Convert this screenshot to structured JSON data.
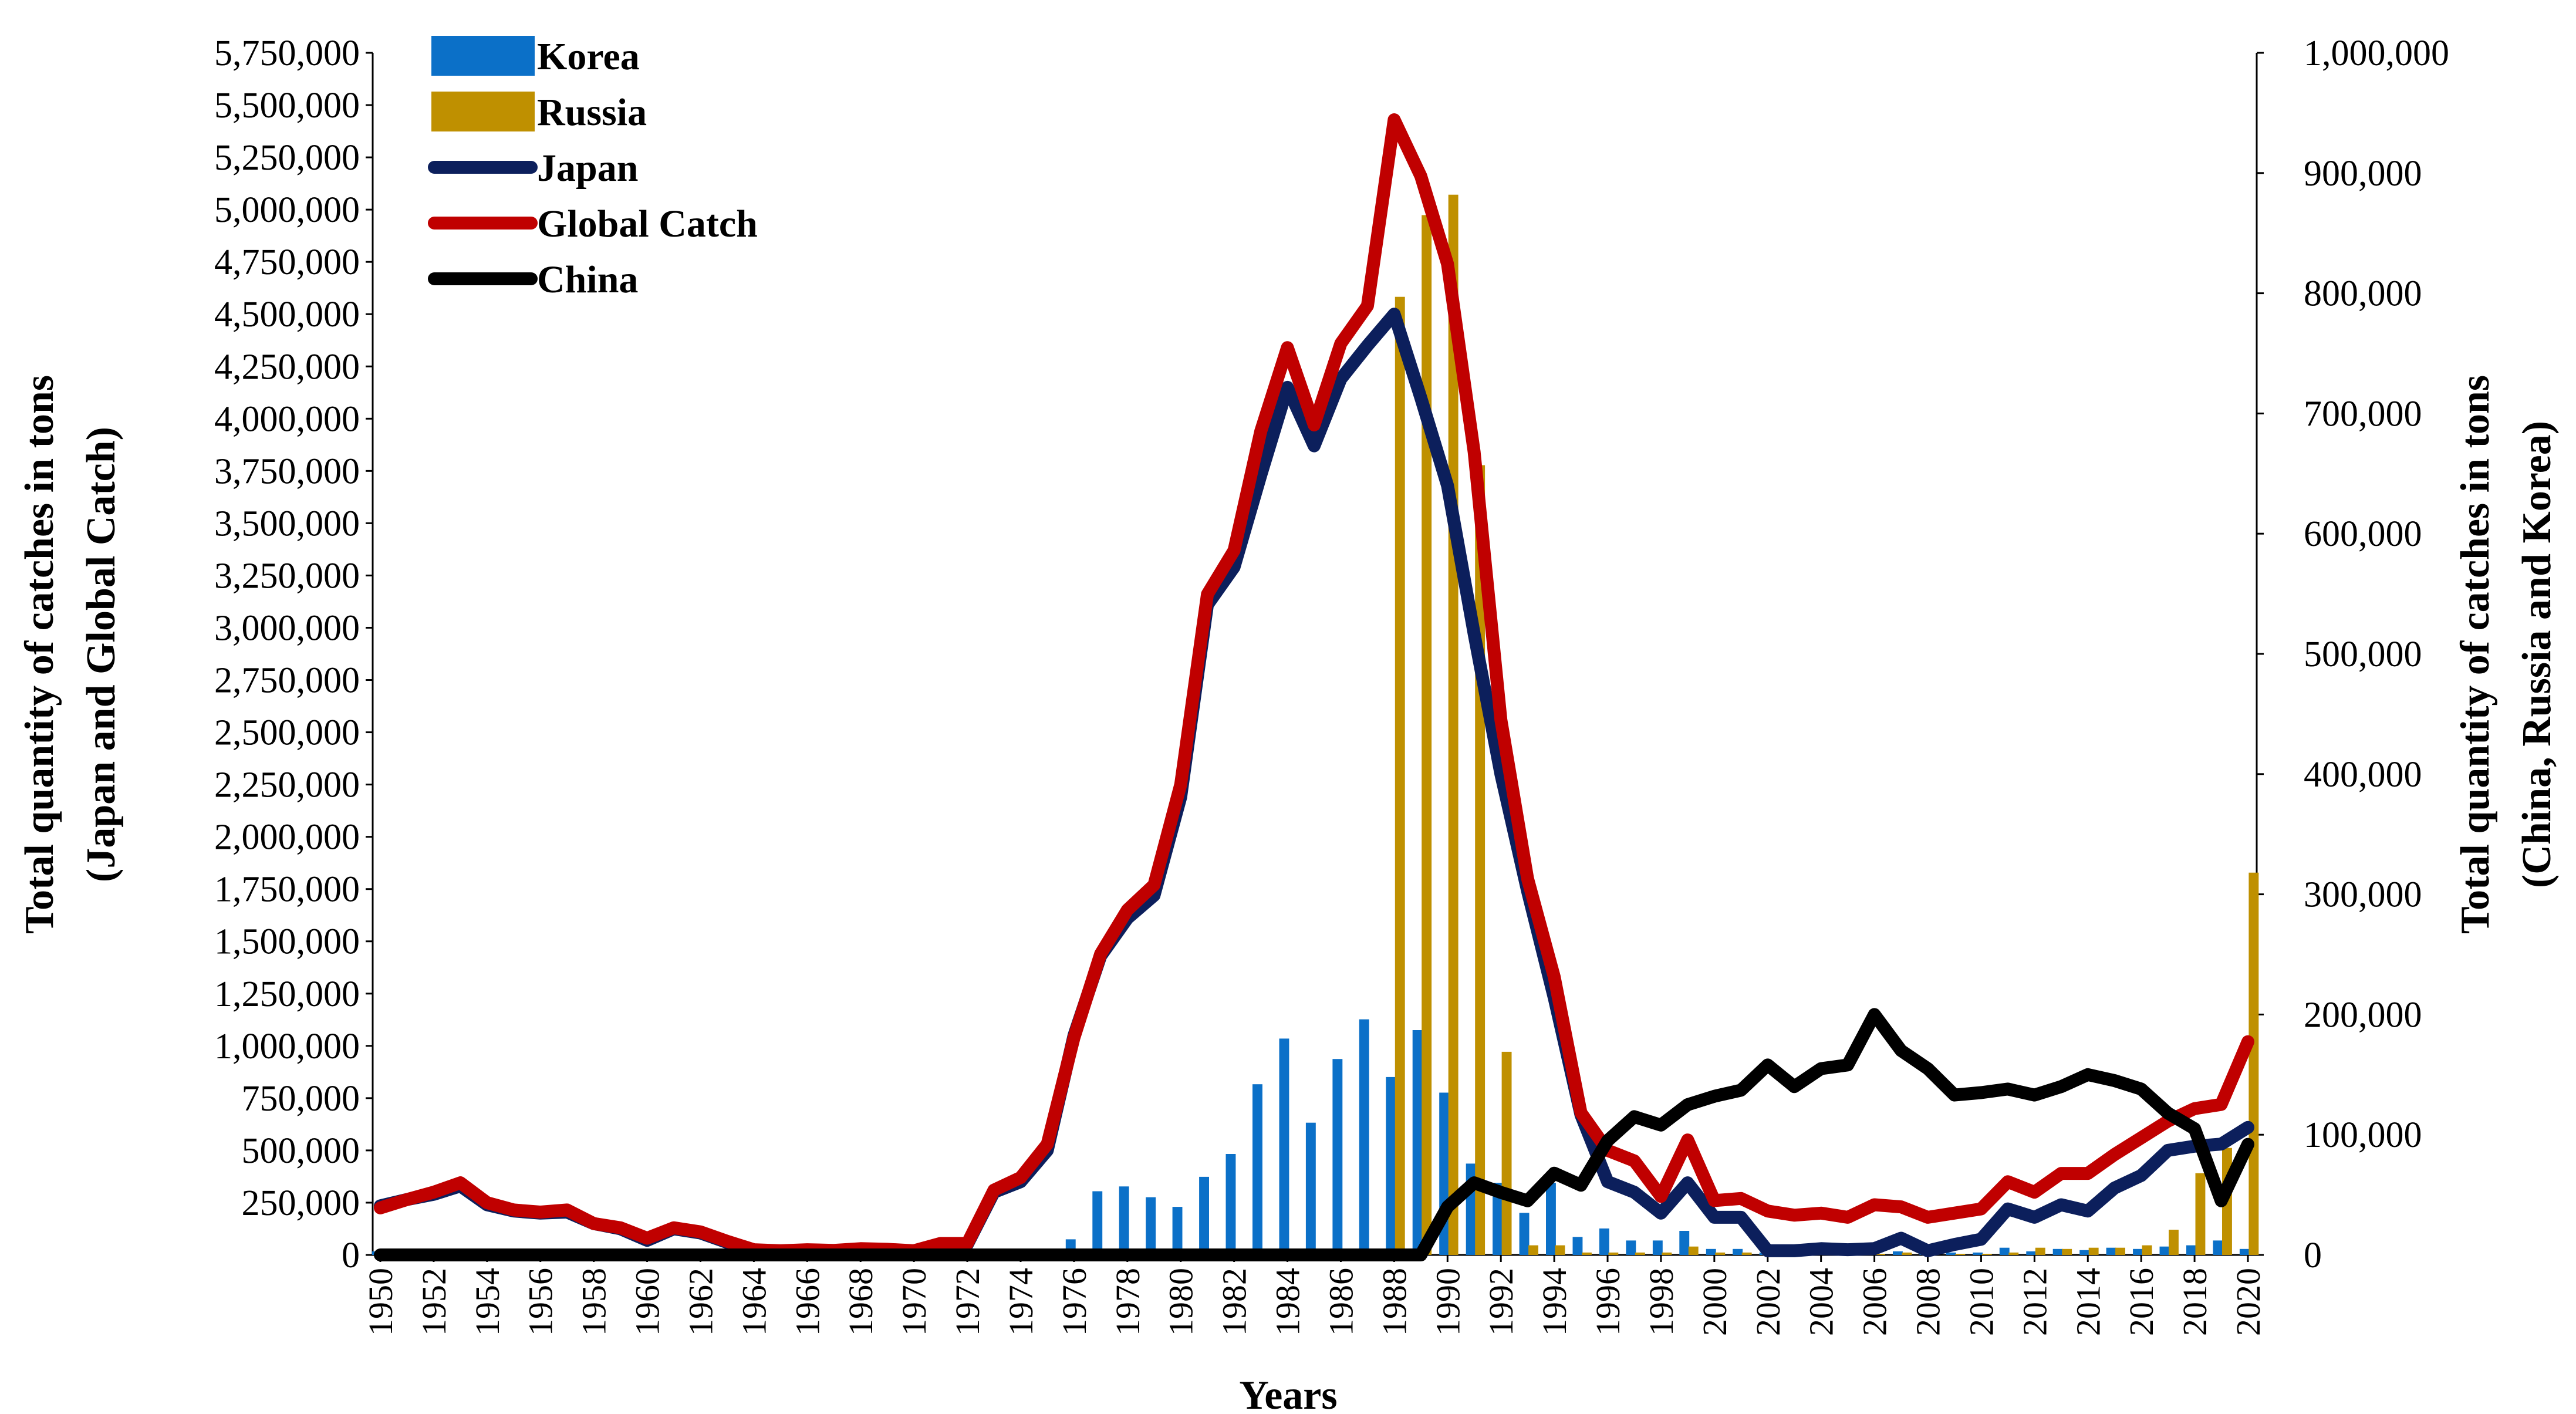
{
  "chart_data": {
    "type": "bar+line",
    "title": "",
    "xlabel": "Years",
    "ylabel_left": [
      "Total quantity of catches in tons",
      "(Japan and Global Catch)"
    ],
    "ylabel_right": [
      "Total quantity of catches in tons",
      "(China, Russia and Korea)"
    ],
    "ylim_left": [
      0,
      5750000
    ],
    "ylim_right": [
      0,
      1000000
    ],
    "yticks_left": [
      "5,750,000",
      "5,500,000",
      "5,250,000",
      "5,000,000",
      "4,750,000",
      "4,500,000",
      "4,250,000",
      "4,000,000",
      "3,750,000",
      "3,500,000",
      "3,250,000",
      "3,000,000",
      "2,750,000",
      "2,500,000",
      "2,250,000",
      "2,000,000",
      "1,750,000",
      "1,500,000",
      "1,250,000",
      "1,000,000",
      "750,000",
      "500,000",
      "250,000",
      "0"
    ],
    "yticks_right": [
      "1,000,000",
      "900,000",
      "800,000",
      "700,000",
      "600,000",
      "500,000",
      "400,000",
      "300,000",
      "200,000",
      "100,000",
      "0"
    ],
    "xtick_labels": [
      "1950",
      "1952",
      "1954",
      "1956",
      "1958",
      "1960",
      "1962",
      "1964",
      "1966",
      "1968",
      "1970",
      "1972",
      "1974",
      "1976",
      "1978",
      "1980",
      "1982",
      "1984",
      "1986",
      "1988",
      "1990",
      "1992",
      "1994",
      "1996",
      "1998",
      "2000",
      "2002",
      "2004",
      "2006",
      "2008",
      "2010",
      "2012",
      "2014",
      "2016",
      "2018",
      "2020"
    ],
    "years": [
      1950,
      1951,
      1952,
      1953,
      1954,
      1955,
      1956,
      1957,
      1958,
      1959,
      1960,
      1961,
      1962,
      1963,
      1964,
      1965,
      1966,
      1967,
      1968,
      1969,
      1970,
      1971,
      1972,
      1973,
      1974,
      1975,
      1976,
      1977,
      1978,
      1979,
      1980,
      1981,
      1982,
      1983,
      1984,
      1985,
      1986,
      1987,
      1988,
      1989,
      1990,
      1991,
      1992,
      1993,
      1994,
      1995,
      1996,
      1997,
      1998,
      1999,
      2000,
      2001,
      2002,
      2003,
      2004,
      2005,
      2006,
      2007,
      2008,
      2009,
      2010,
      2011,
      2012,
      2013,
      2014,
      2015,
      2016,
      2017,
      2018,
      2019,
      2020
    ],
    "series": [
      {
        "name": "Korea",
        "kind": "bar",
        "axis": "right",
        "color": "#0B70C8",
        "values": [
          3000,
          0,
          0,
          0,
          0,
          0,
          0,
          0,
          0,
          0,
          0,
          0,
          0,
          0,
          0,
          0,
          0,
          0,
          0,
          0,
          0,
          0,
          0,
          4000,
          2000,
          5000,
          13000,
          53000,
          57000,
          48000,
          40000,
          65000,
          84000,
          142000,
          180000,
          110000,
          163000,
          196000,
          148000,
          187000,
          135000,
          76000,
          60000,
          35000,
          60000,
          15000,
          22000,
          12000,
          12000,
          20000,
          5000,
          5000,
          2000,
          2000,
          3000,
          4000,
          2000,
          3000,
          3000,
          2000,
          2000,
          6000,
          3000,
          5000,
          4000,
          6000,
          5000,
          7000,
          8000,
          12000,
          5000
        ]
      },
      {
        "name": "Russia",
        "kind": "bar",
        "axis": "right",
        "color": "#BF9000",
        "values": [
          0,
          0,
          0,
          0,
          0,
          0,
          0,
          0,
          0,
          0,
          0,
          0,
          0,
          0,
          0,
          0,
          0,
          0,
          0,
          0,
          0,
          0,
          0,
          0,
          0,
          0,
          0,
          0,
          0,
          0,
          0,
          0,
          0,
          0,
          0,
          0,
          0,
          0,
          797000,
          865000,
          882000,
          657000,
          169000,
          8000,
          8000,
          2000,
          2000,
          2000,
          2000,
          7000,
          2000,
          2000,
          2000,
          1000,
          1000,
          1000,
          1000,
          2000,
          1000,
          1000,
          1000,
          2000,
          6000,
          5000,
          6000,
          6000,
          8000,
          21000,
          68000,
          89000,
          318000
        ]
      },
      {
        "name": "Japan",
        "kind": "line",
        "axis": "left",
        "color": "#0C1F5C",
        "values": [
          235000,
          265000,
          290000,
          330000,
          240000,
          210000,
          200000,
          205000,
          150000,
          125000,
          70000,
          125000,
          105000,
          60000,
          20000,
          15000,
          20000,
          18000,
          25000,
          22000,
          15000,
          50000,
          50000,
          300000,
          350000,
          500000,
          1050000,
          1430000,
          1610000,
          1720000,
          2190000,
          3110000,
          3290000,
          3730000,
          4150000,
          3870000,
          4190000,
          4350000,
          4500000,
          4100000,
          3680000,
          2970000,
          2300000,
          1740000,
          1230000,
          670000,
          350000,
          300000,
          200000,
          345000,
          180000,
          180000,
          20000,
          20000,
          30000,
          25000,
          30000,
          80000,
          20000,
          50000,
          75000,
          220000,
          180000,
          240000,
          210000,
          320000,
          380000,
          500000,
          520000,
          530000,
          610000
        ]
      },
      {
        "name": "Global Catch",
        "kind": "line",
        "axis": "left",
        "color": "#C00000",
        "values": [
          225000,
          265000,
          300000,
          345000,
          250000,
          215000,
          205000,
          215000,
          150000,
          130000,
          80000,
          130000,
          110000,
          65000,
          25000,
          20000,
          25000,
          22000,
          30000,
          27000,
          20000,
          55000,
          55000,
          310000,
          370000,
          530000,
          1040000,
          1440000,
          1650000,
          1770000,
          2250000,
          3160000,
          3370000,
          3940000,
          4340000,
          3970000,
          4360000,
          4540000,
          5430000,
          5160000,
          4740000,
          3840000,
          2560000,
          1800000,
          1330000,
          680000,
          500000,
          450000,
          280000,
          550000,
          260000,
          270000,
          210000,
          190000,
          200000,
          180000,
          240000,
          230000,
          180000,
          200000,
          220000,
          350000,
          300000,
          390000,
          390000,
          480000,
          560000,
          640000,
          700000,
          720000,
          1020000
        ]
      },
      {
        "name": "China",
        "kind": "line",
        "axis": "right",
        "color": "#000000",
        "values": [
          0,
          0,
          0,
          0,
          0,
          0,
          0,
          0,
          0,
          0,
          0,
          0,
          0,
          0,
          0,
          0,
          0,
          0,
          0,
          0,
          0,
          0,
          0,
          0,
          0,
          0,
          0,
          0,
          0,
          0,
          0,
          0,
          0,
          0,
          0,
          0,
          0,
          0,
          0,
          0,
          40000,
          60000,
          52000,
          45000,
          68000,
          58000,
          95000,
          115000,
          108000,
          125000,
          132000,
          137000,
          158000,
          140000,
          155000,
          158000,
          200000,
          170000,
          155000,
          133000,
          135000,
          138000,
          133000,
          140000,
          150000,
          145000,
          138000,
          118000,
          105000,
          45000,
          92000
        ]
      }
    ]
  }
}
